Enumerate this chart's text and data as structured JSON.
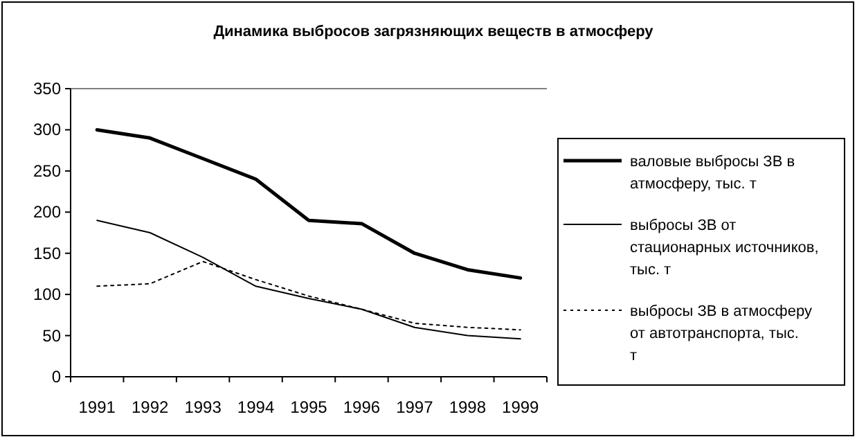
{
  "chart_data": {
    "type": "line",
    "title": "Динамика выбросов загрязняющих веществ в атмосферу",
    "categories": [
      "1991",
      "1992",
      "1993",
      "1994",
      "1995",
      "1996",
      "1997",
      "1998",
      "1999"
    ],
    "series": [
      {
        "name": "валовые выбросы ЗВ в атмосферу, тыс. т",
        "color": "#000000",
        "line_style": "solid",
        "values": [
          300,
          290,
          265,
          240,
          190,
          186,
          150,
          130,
          120
        ]
      },
      {
        "name": "выбросы ЗВ от стационарных источников, тыс. т",
        "color": "#000000",
        "line_style": "solid",
        "values": [
          190,
          175,
          145,
          110,
          95,
          82,
          60,
          50,
          46
        ]
      },
      {
        "name": "выбросы ЗВ в атмосферу от автотранспорта, тыс. т",
        "color": "#000000",
        "line_style": "dotted",
        "values": [
          110,
          113,
          140,
          118,
          98,
          82,
          65,
          60,
          57
        ]
      }
    ],
    "ylim": [
      0,
      350
    ],
    "yticks": [
      0,
      50,
      100,
      150,
      200,
      250,
      300,
      350
    ],
    "legend": "right",
    "marker": "none"
  }
}
